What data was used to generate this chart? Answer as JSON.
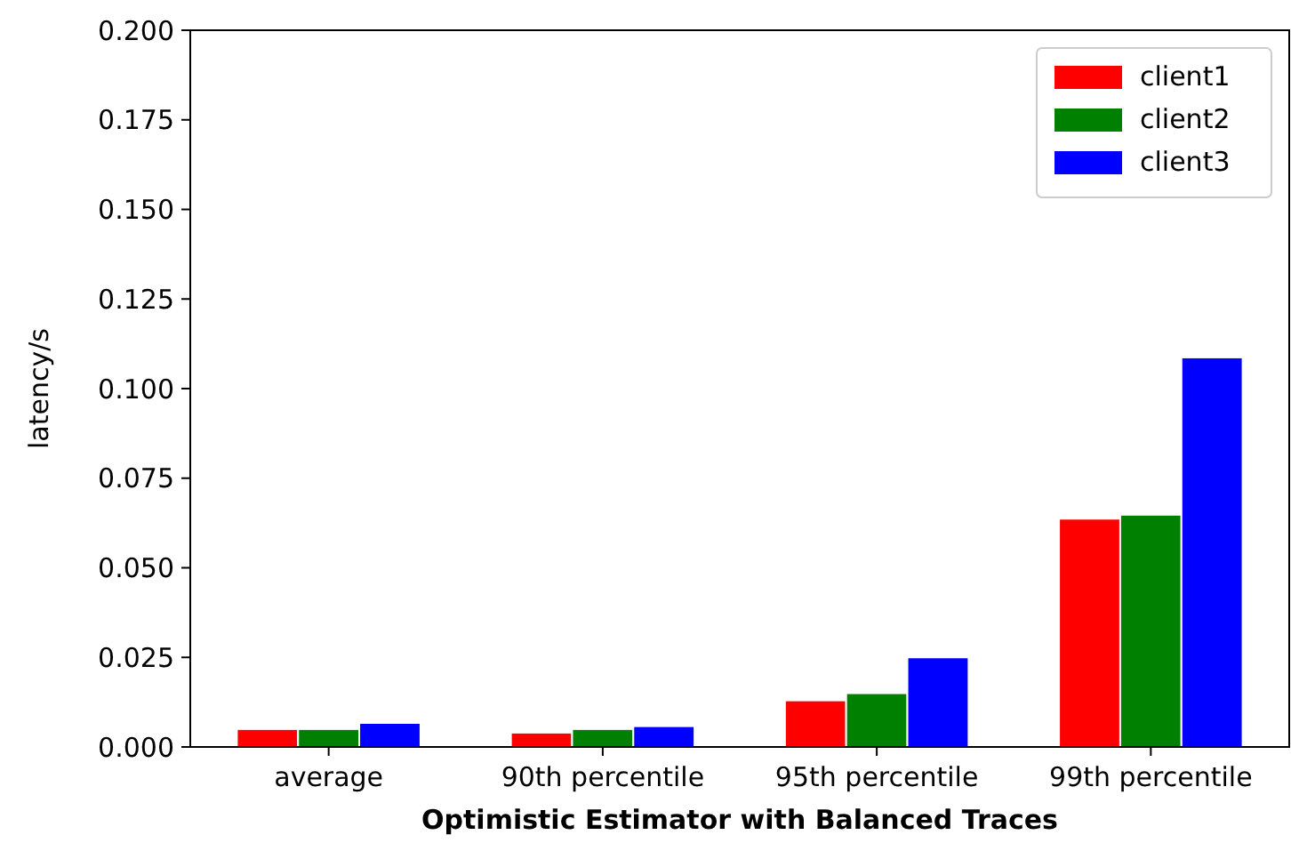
{
  "chart_data": {
    "type": "bar",
    "xlabel": "Optimistic Estimator with Balanced Traces",
    "ylabel": "latency/s",
    "categories": [
      "average",
      "90th percentile",
      "95th percentile",
      "99th percentile"
    ],
    "series": [
      {
        "name": "client1",
        "color": "#ff0000",
        "values": [
          0.005,
          0.004,
          0.013,
          0.0637
        ]
      },
      {
        "name": "client2",
        "color": "#008000",
        "values": [
          0.005,
          0.005,
          0.015,
          0.0648
        ]
      },
      {
        "name": "client3",
        "color": "#0000ff",
        "values": [
          0.0067,
          0.0058,
          0.025,
          0.1087
        ]
      }
    ],
    "ylim": [
      0,
      0.2
    ],
    "yticks": [
      {
        "value": 0,
        "label": "0.000"
      },
      {
        "value": 0.025,
        "label": "0.025"
      },
      {
        "value": 0.05,
        "label": "0.050"
      },
      {
        "value": 0.075,
        "label": "0.075"
      },
      {
        "value": 0.1,
        "label": "0.100"
      },
      {
        "value": 0.125,
        "label": "0.125"
      },
      {
        "value": 0.15,
        "label": "0.150"
      },
      {
        "value": 0.175,
        "label": "0.175"
      },
      {
        "value": 0.2,
        "label": "0.200"
      }
    ],
    "grid": false,
    "legend": "top right"
  }
}
